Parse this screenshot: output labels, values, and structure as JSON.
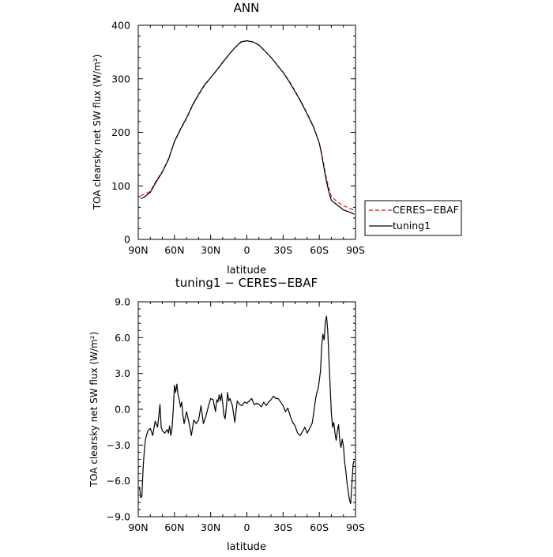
{
  "chart_data": [
    {
      "type": "line",
      "title": "ANN",
      "xlabel": "latitude",
      "ylabel": "TOA clearsky net SW flux (W/m²)",
      "xlim": [
        90,
        -90
      ],
      "ylim": [
        0,
        400
      ],
      "xticks": [
        90,
        60,
        30,
        0,
        -30,
        -60,
        -90
      ],
      "xtick_labels": [
        "90N",
        "60N",
        "30N",
        "0",
        "30S",
        "60S",
        "90S"
      ],
      "yticks": [
        0,
        100,
        200,
        300,
        400
      ],
      "ytick_labels": [
        "0",
        "100",
        "200",
        "300",
        "400"
      ],
      "legend_placement": "outside-right",
      "series": [
        {
          "name": "CERES−EBAF",
          "color": "#e0161b",
          "dash": "dashed",
          "x": [
            88,
            85,
            80,
            75,
            70,
            65,
            60,
            55,
            50,
            45,
            40,
            35,
            30,
            25,
            20,
            15,
            10,
            5,
            0,
            -5,
            -10,
            -15,
            -20,
            -25,
            -30,
            -35,
            -40,
            -45,
            -50,
            -55,
            -60,
            -62,
            -64,
            -66,
            -68,
            -70,
            -75,
            -80,
            -85,
            -89
          ],
          "y": [
            82,
            84,
            90,
            110,
            127,
            150,
            182,
            205,
            226,
            250,
            270,
            288,
            302,
            316,
            330,
            345,
            358,
            368,
            371,
            369,
            363,
            352,
            340,
            326,
            312,
            296,
            277,
            257,
            235,
            212,
            180,
            160,
            136,
            113,
            95,
            80,
            70,
            63,
            58,
            55
          ]
        },
        {
          "name": "tuning1",
          "color": "#000000",
          "dash": "solid",
          "x": [
            88,
            85,
            80,
            75,
            70,
            65,
            60,
            55,
            50,
            45,
            40,
            35,
            30,
            25,
            20,
            15,
            10,
            5,
            0,
            -5,
            -10,
            -15,
            -20,
            -25,
            -30,
            -35,
            -40,
            -45,
            -50,
            -55,
            -60,
            -62,
            -64,
            -66,
            -68,
            -70,
            -75,
            -80,
            -85,
            -89
          ],
          "y": [
            76,
            79,
            88,
            108,
            126,
            149,
            183,
            206,
            227,
            251,
            271,
            289,
            302,
            316,
            331,
            345,
            358,
            369,
            371,
            369,
            363,
            352,
            340,
            326,
            312,
            295,
            276,
            256,
            234,
            211,
            180,
            158,
            132,
            108,
            88,
            73,
            64,
            55,
            51,
            47
          ]
        }
      ]
    },
    {
      "type": "line",
      "title": "tuning1 − CERES−EBAF",
      "xlabel": "latitude",
      "ylabel": "TOA clearsky net SW flux (W/m²)",
      "xlim": [
        90,
        -90
      ],
      "ylim": [
        -9,
        9
      ],
      "xticks": [
        90,
        60,
        30,
        0,
        -30,
        -60,
        -90
      ],
      "xtick_labels": [
        "90N",
        "60N",
        "30N",
        "0",
        "30S",
        "60S",
        "90S"
      ],
      "yticks": [
        -9,
        -6,
        -3,
        0,
        3,
        6,
        9
      ],
      "ytick_labels": [
        "−9.0",
        "−6.0",
        "−3.0",
        "0.0",
        "3.0",
        "6.0",
        "9.0"
      ],
      "series": [
        {
          "color": "#000000",
          "x": [
            89,
            88,
            87,
            86,
            85,
            84,
            82,
            80,
            78,
            76,
            74,
            73,
            72,
            71,
            70,
            68,
            66,
            65,
            64,
            63,
            62,
            61,
            60,
            59,
            58,
            57,
            56,
            55,
            54,
            53,
            52,
            50,
            48,
            46,
            44,
            42,
            40,
            38,
            36,
            34,
            32,
            30,
            28,
            26,
            25,
            24,
            23,
            22,
            21,
            20,
            19,
            18,
            17,
            16,
            15,
            14,
            13,
            12,
            10,
            8,
            6,
            4,
            2,
            0,
            -2,
            -4,
            -6,
            -8,
            -10,
            -12,
            -14,
            -16,
            -18,
            -20,
            -22,
            -24,
            -26,
            -28,
            -30,
            -32,
            -34,
            -36,
            -38,
            -40,
            -42,
            -44,
            -46,
            -48,
            -50,
            -52,
            -54,
            -55,
            -56,
            -57,
            -58,
            -59,
            -60,
            -61,
            -62,
            -63,
            -64,
            -65,
            -66,
            -67,
            -68,
            -69,
            -70,
            -71,
            -72,
            -73,
            -74,
            -75,
            -76,
            -77,
            -78,
            -79,
            -80,
            -81,
            -82,
            -83,
            -84,
            -85,
            -86,
            -87,
            -88,
            -89
          ],
          "y": [
            -6.5,
            -7.4,
            -7.3,
            -5.0,
            -3.5,
            -2.5,
            -1.8,
            -1.6,
            -2.2,
            -1.0,
            -1.5,
            -0.6,
            0.4,
            -1.5,
            -1.8,
            -2.0,
            -1.7,
            -2.0,
            -1.4,
            -2.2,
            -1.6,
            0.0,
            2.0,
            1.4,
            2.1,
            1.2,
            0.8,
            0.2,
            0.6,
            -0.5,
            -1.2,
            -0.2,
            -1.1,
            -2.2,
            -0.9,
            -1.2,
            -0.9,
            0.3,
            -1.2,
            -0.6,
            0.2,
            0.9,
            0.8,
            -0.2,
            0.8,
            0.6,
            1.2,
            0.7,
            1.3,
            0.5,
            -0.5,
            -0.8,
            0.2,
            1.4,
            0.7,
            0.9,
            0.6,
            0.3,
            -1.1,
            0.7,
            0.4,
            0.3,
            0.6,
            0.5,
            0.7,
            0.9,
            0.4,
            0.5,
            0.4,
            0.2,
            0.6,
            0.3,
            0.6,
            0.8,
            1.1,
            0.9,
            0.9,
            0.6,
            0.3,
            -0.2,
            0.1,
            -0.6,
            -1.1,
            -1.4,
            -2.0,
            -2.2,
            -1.9,
            -1.5,
            -2.0,
            -1.6,
            -1.2,
            -0.6,
            0.2,
            0.9,
            1.4,
            1.7,
            2.4,
            3.2,
            5.3,
            6.3,
            5.8,
            7.3,
            7.8,
            6.6,
            4.2,
            1.9,
            -0.3,
            -1.5,
            -1.1,
            -2.0,
            -2.6,
            -1.8,
            -1.3,
            -2.7,
            -3.2,
            -2.5,
            -3.1,
            -4.4,
            -5.2,
            -6.2,
            -6.9,
            -7.6,
            -7.9,
            -6.3,
            -4.6,
            -4.3
          ]
        }
      ]
    }
  ]
}
